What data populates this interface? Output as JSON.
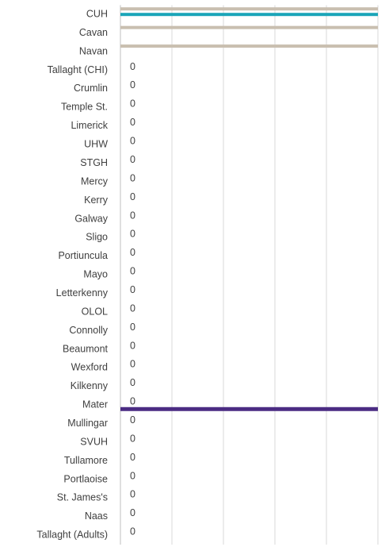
{
  "chart_data": {
    "type": "bar",
    "orientation": "horizontal",
    "categories": [
      "CUH",
      "Cavan",
      "Navan",
      "Tallaght (CHI)",
      "Crumlin",
      "Temple St.",
      "Limerick",
      "UHW",
      "STGH",
      "Mercy",
      "Kerry",
      "Galway",
      "Sligo",
      "Portiuncula",
      "Mayo",
      "Letterkenny",
      "OLOL",
      "Connolly",
      "Beaumont",
      "Wexford",
      "Kilkenny",
      "Mater",
      "Mullingar",
      "SVUH",
      "Tullamore",
      "Portlaoise",
      "St. James's",
      "Naas",
      "Tallaght (Adults)"
    ],
    "series": [
      {
        "color": "#c9bfb0",
        "values": [
          5,
          5,
          5,
          0,
          0,
          0,
          0,
          0,
          0,
          0,
          0,
          0,
          0,
          0,
          0,
          0,
          0,
          0,
          0,
          0,
          0,
          0,
          0,
          0,
          0,
          0,
          0,
          0,
          0
        ],
        "value_labels": [
          null,
          null,
          null,
          "0",
          "0",
          "0",
          "0",
          "0",
          "0",
          "0",
          "0",
          "0",
          "0",
          "0",
          "0",
          "0",
          "0",
          "0",
          "0",
          "0",
          "0",
          "0",
          "0",
          "0",
          "0",
          "0",
          "0",
          "0",
          "0"
        ]
      },
      {
        "color": "#1aa5b8",
        "values": [
          5,
          null,
          null,
          null,
          null,
          null,
          null,
          null,
          null,
          null,
          null,
          null,
          null,
          null,
          null,
          null,
          null,
          null,
          null,
          null,
          null,
          null,
          null,
          null,
          null,
          null,
          null,
          null,
          null
        ]
      },
      {
        "color": "#4b2c83",
        "values": [
          null,
          null,
          null,
          null,
          null,
          null,
          null,
          null,
          null,
          null,
          null,
          null,
          null,
          null,
          null,
          null,
          null,
          null,
          null,
          null,
          null,
          5,
          null,
          null,
          null,
          null,
          null,
          null,
          null
        ]
      }
    ],
    "xlim": [
      0,
      5
    ],
    "xticks": [
      0,
      1,
      2,
      3,
      4,
      5
    ],
    "grid": true
  }
}
